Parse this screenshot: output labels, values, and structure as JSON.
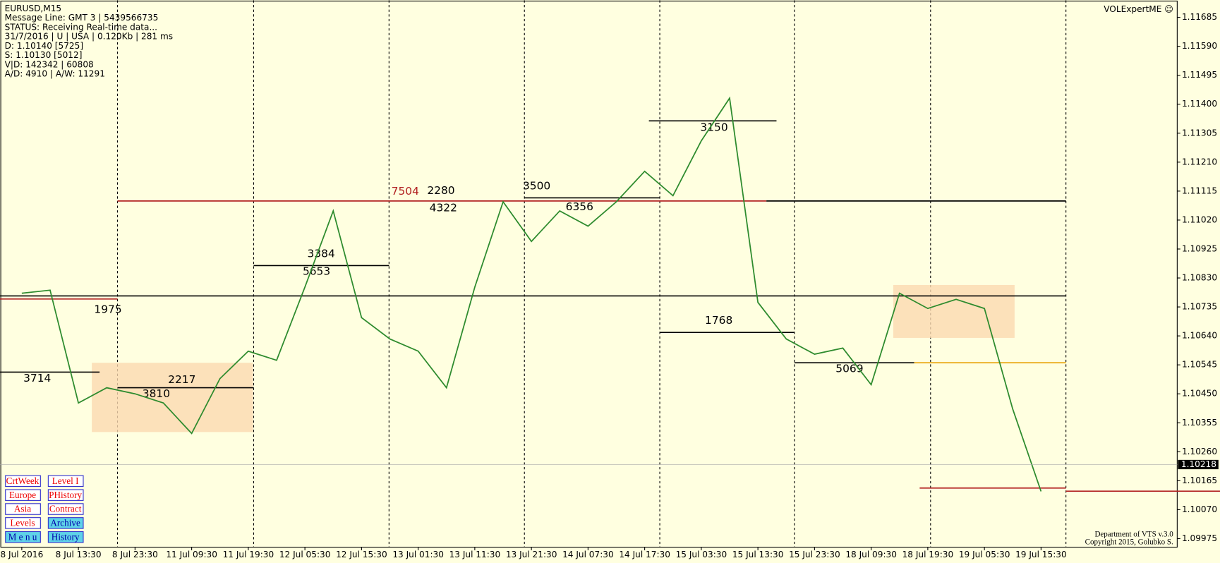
{
  "header": {
    "symbol": "EURUSD,M15",
    "lines": [
      "Message Line: GMT 3 | 5439566735",
      "STATUS:  Receiving Real-time data...",
      "31/7/2016 | U | USA | 0.120Kb | 281 ms",
      "D: 1.10140  [5725]",
      "S: 1.10130  [5012]",
      "V|D: 142342 | 60808",
      "A/D: 4910 | A/W: 11291"
    ],
    "brand": "VOLExpertME ☺"
  },
  "levels": [
    "7504",
    "2280",
    "4322",
    "3500",
    "6356",
    "3384",
    "5653",
    "1975",
    "3714",
    "3810",
    "2217",
    "3150",
    "1768",
    "5069"
  ],
  "buttons": [
    "CrtWeek",
    "Level I",
    "Europe",
    "PHistory",
    "Asia",
    "Contract",
    "Levels",
    "Archive",
    "M e n u",
    "History"
  ],
  "footer": [
    "Department of VTS  v.3.0",
    "Copyright 2015, Golubko S."
  ],
  "chart_data": {
    "type": "line",
    "categories": [
      "8 Jul 2016",
      null,
      "8 Jul 13:30",
      null,
      "8 Jul 23:30",
      null,
      "11 Jul 09:30",
      null,
      "11 Jul 19:30",
      null,
      "12 Jul 05:30",
      null,
      "12 Jul 15:30",
      null,
      "13 Jul 01:30",
      null,
      "13 Jul 11:30",
      null,
      "13 Jul 21:30",
      null,
      "14 Jul 07:30",
      null,
      "14 Jul 17:30",
      null,
      "15 Jul 03:30",
      null,
      "15 Jul 13:30",
      null,
      "15 Jul 23:30",
      null,
      "18 Jul 09:30",
      null,
      "18 Jul 19:30",
      null,
      "19 Jul 05:30",
      null,
      "19 Jul 15:30"
    ],
    "values": [
      1.1078,
      1.1079,
      1.1042,
      1.1047,
      1.1045,
      1.1042,
      1.1032,
      1.105,
      1.1059,
      1.1056,
      1.108,
      1.1105,
      1.107,
      1.1063,
      1.1059,
      1.1047,
      1.108,
      1.1108,
      1.1095,
      1.1105,
      1.11,
      1.1108,
      1.1118,
      1.111,
      1.1128,
      1.1142,
      1.1075,
      1.1063,
      1.1058,
      1.106,
      1.1048,
      1.1078,
      1.1073,
      1.1076,
      1.1073,
      1.104,
      1.1013
    ],
    "color": "#2e8b2e",
    "ylim": [
      1.09947,
      1.11741
    ],
    "yticks": [
      1.11685,
      {
        "value": 1.1159,
        "label": "1.11590"
      },
      1.11495,
      {
        "value": 1.114,
        "label": "1.11400"
      },
      1.11305,
      {
        "value": 1.1121,
        "label": "1.11210"
      },
      1.11115,
      {
        "value": 1.1102,
        "label": "1.11020"
      },
      1.10925,
      {
        "value": 1.1083,
        "label": "1.10830"
      },
      1.10735,
      {
        "value": 1.1064,
        "label": "1.10640"
      },
      1.10545,
      {
        "value": 1.1045,
        "label": "1.10450"
      },
      1.10355,
      {
        "value": 1.1026,
        "label": "1.10260"
      },
      1.10165,
      {
        "value": 1.1007,
        "label": "1.10070"
      },
      1.09975
    ],
    "last_price": 1.10218
  }
}
